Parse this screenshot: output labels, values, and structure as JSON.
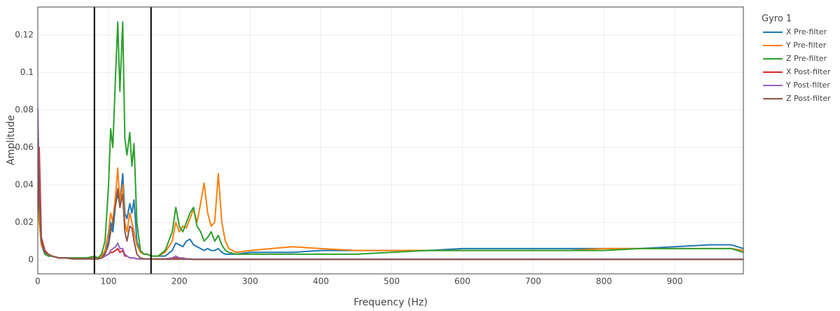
{
  "chart_data": {
    "type": "line",
    "xlabel": "Frequency (Hz)",
    "ylabel": "Amplitude",
    "legend_title": "Gyro 1",
    "legend": "right",
    "grid": true,
    "xlim": [
      0,
      997
    ],
    "ylim": [
      -0.0075,
      0.135
    ],
    "xticks": [
      0,
      100,
      200,
      300,
      400,
      500,
      600,
      700,
      800,
      900
    ],
    "yticks": [
      0,
      0.02,
      0.04,
      0.06,
      0.08,
      0.1,
      0.12
    ],
    "vlines": [
      80,
      160
    ],
    "x": [
      0,
      2,
      5,
      10,
      15,
      20,
      30,
      40,
      50,
      60,
      70,
      80,
      85,
      90,
      95,
      100,
      103,
      106,
      110,
      113,
      116,
      120,
      123,
      126,
      130,
      133,
      136,
      140,
      145,
      150,
      155,
      160,
      170,
      180,
      190,
      195,
      200,
      205,
      210,
      215,
      220,
      225,
      230,
      235,
      240,
      245,
      250,
      255,
      260,
      265,
      270,
      280,
      300,
      330,
      360,
      400,
      450,
      500,
      550,
      600,
      650,
      700,
      750,
      800,
      850,
      900,
      950,
      980,
      997
    ],
    "series": [
      {
        "name": "X Pre-filter",
        "color": "#1f77b4",
        "values": [
          0.045,
          0.02,
          0.008,
          0.003,
          0.002,
          0.002,
          0.001,
          0.001,
          0.001,
          0.001,
          0.001,
          0.001,
          0.001,
          0.002,
          0.004,
          0.01,
          0.02,
          0.015,
          0.03,
          0.035,
          0.03,
          0.046,
          0.025,
          0.022,
          0.03,
          0.025,
          0.032,
          0.01,
          0.004,
          0.003,
          0.003,
          0.002,
          0.002,
          0.002,
          0.005,
          0.009,
          0.008,
          0.007,
          0.01,
          0.011,
          0.008,
          0.007,
          0.006,
          0.005,
          0.006,
          0.005,
          0.005,
          0.006,
          0.004,
          0.003,
          0.003,
          0.003,
          0.004,
          0.004,
          0.004,
          0.005,
          0.005,
          0.005,
          0.005,
          0.006,
          0.006,
          0.006,
          0.006,
          0.006,
          0.006,
          0.007,
          0.008,
          0.008,
          0.006
        ]
      },
      {
        "name": "Y Pre-filter",
        "color": "#ff7f0e",
        "values": [
          0.04,
          0.02,
          0.008,
          0.004,
          0.002,
          0.002,
          0.001,
          0.001,
          0.001,
          0.001,
          0.001,
          0.001,
          0.001,
          0.002,
          0.005,
          0.015,
          0.025,
          0.02,
          0.035,
          0.049,
          0.03,
          0.04,
          0.02,
          0.015,
          0.025,
          0.02,
          0.015,
          0.008,
          0.004,
          0.003,
          0.003,
          0.002,
          0.002,
          0.004,
          0.01,
          0.02,
          0.015,
          0.018,
          0.017,
          0.022,
          0.027,
          0.02,
          0.03,
          0.041,
          0.025,
          0.018,
          0.02,
          0.046,
          0.02,
          0.01,
          0.006,
          0.004,
          0.005,
          0.006,
          0.007,
          0.006,
          0.005,
          0.005,
          0.005,
          0.005,
          0.005,
          0.005,
          0.005,
          0.006,
          0.006,
          0.006,
          0.006,
          0.006,
          0.005
        ]
      },
      {
        "name": "Z Pre-filter",
        "color": "#2ca02c",
        "values": [
          0.06,
          0.03,
          0.01,
          0.003,
          0.002,
          0.002,
          0.001,
          0.001,
          0.001,
          0.001,
          0.001,
          0.002,
          0.001,
          0.003,
          0.01,
          0.04,
          0.07,
          0.06,
          0.1,
          0.127,
          0.09,
          0.127,
          0.065,
          0.056,
          0.068,
          0.05,
          0.062,
          0.02,
          0.005,
          0.003,
          0.003,
          0.002,
          0.002,
          0.005,
          0.015,
          0.028,
          0.018,
          0.015,
          0.02,
          0.025,
          0.028,
          0.018,
          0.015,
          0.01,
          0.012,
          0.015,
          0.01,
          0.013,
          0.008,
          0.005,
          0.004,
          0.003,
          0.003,
          0.003,
          0.003,
          0.003,
          0.003,
          0.004,
          0.005,
          0.005,
          0.005,
          0.005,
          0.005,
          0.005,
          0.006,
          0.006,
          0.006,
          0.006,
          0.004
        ]
      },
      {
        "name": "X Post-filter",
        "color": "#d62728",
        "values": [
          0.025,
          0.06,
          0.012,
          0.005,
          0.003,
          0.002,
          0.001,
          0.001,
          0.0005,
          0.0005,
          0.0005,
          0.0005,
          0.0005,
          0.001,
          0.002,
          0.003,
          0.004,
          0.004,
          0.005,
          0.006,
          0.004,
          0.005,
          0.002,
          0.002,
          0.001,
          0.001,
          0.001,
          0.0005,
          0.0005,
          0.0005,
          0.0005,
          0.0005,
          0.0005,
          0.0005,
          0.001,
          0.001,
          0.001,
          0.001,
          0.0005,
          0.0005,
          0.0003,
          0.0003,
          0.0003,
          0.0003,
          0.0003,
          0.0003,
          0.0003,
          0.0003,
          0.0003,
          0.0003,
          0.0003,
          0.0003,
          0.0003,
          0.0003,
          0.0003,
          0.0003,
          0.0003,
          0.0003,
          0.0003,
          0.0003,
          0.0003,
          0.0003,
          0.0003,
          0.0003,
          0.0003,
          0.0003,
          0.0003,
          0.0003,
          0.0003
        ]
      },
      {
        "name": "Y Post-filter",
        "color": "#9467bd",
        "values": [
          0.081,
          0.04,
          0.01,
          0.004,
          0.003,
          0.002,
          0.001,
          0.001,
          0.0005,
          0.0005,
          0.0005,
          0.0005,
          0.0005,
          0.001,
          0.002,
          0.003,
          0.005,
          0.006,
          0.007,
          0.009,
          0.006,
          0.006,
          0.003,
          0.002,
          0.001,
          0.001,
          0.001,
          0.0005,
          0.0005,
          0.0005,
          0.0005,
          0.0005,
          0.0005,
          0.0005,
          0.001,
          0.002,
          0.001,
          0.001,
          0.0005,
          0.0005,
          0.0003,
          0.0003,
          0.0003,
          0.0003,
          0.0003,
          0.0003,
          0.0003,
          0.0003,
          0.0003,
          0.0003,
          0.0003,
          0.0003,
          0.0003,
          0.0003,
          0.0003,
          0.0003,
          0.0003,
          0.0003,
          0.0003,
          0.0003,
          0.0003,
          0.0003,
          0.0003,
          0.0003,
          0.0003,
          0.0003,
          0.0003,
          0.0003,
          0.0003
        ]
      },
      {
        "name": "Z Post-filter",
        "color": "#8c564b",
        "values": [
          0.065,
          0.035,
          0.01,
          0.004,
          0.003,
          0.002,
          0.001,
          0.001,
          0.0005,
          0.0005,
          0.0005,
          0.0005,
          0.0005,
          0.001,
          0.003,
          0.008,
          0.015,
          0.02,
          0.03,
          0.038,
          0.028,
          0.035,
          0.015,
          0.01,
          0.018,
          0.017,
          0.01,
          0.003,
          0.001,
          0.0005,
          0.0005,
          0.0005,
          0.0003,
          0.0003,
          0.0003,
          0.0003,
          0.0003,
          0.0003,
          0.0003,
          0.0003,
          0.0002,
          0.0002,
          0.0002,
          0.0002,
          0.0002,
          0.0002,
          0.0002,
          0.0002,
          0.0002,
          0.0002,
          0.0002,
          0.0002,
          0.0002,
          0.0002,
          0.0002,
          0.0002,
          0.0002,
          0.0002,
          0.0002,
          0.0002,
          0.0002,
          0.0002,
          0.0002,
          0.0002,
          0.0002,
          0.0002,
          0.0002,
          0.0002,
          0.0002
        ]
      }
    ]
  }
}
